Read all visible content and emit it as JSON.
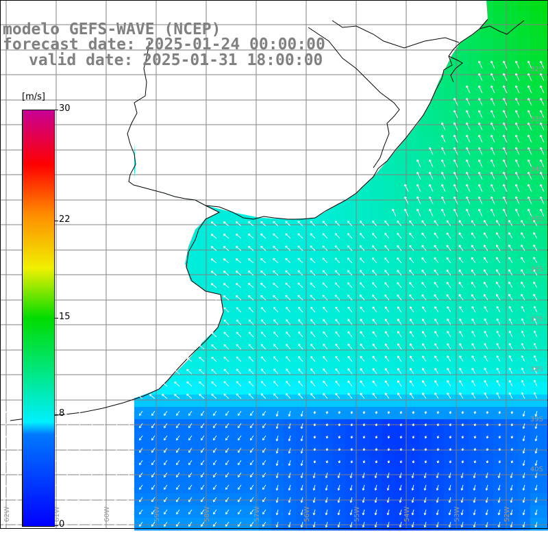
{
  "title": {
    "line1": "modelo GEFS-WAVE (NCEP)",
    "line2": "forecast date: 2025-01-24 00:00:00",
    "line3": "valid date: 2025-01-31 18:00:00"
  },
  "colorbar": {
    "unit": "[m/s]",
    "ticks": [
      "30",
      "22",
      "15",
      "8",
      "0"
    ],
    "tick_values": [
      30,
      22,
      15,
      8,
      0
    ],
    "range": [
      0,
      30
    ],
    "colors": [
      "#0000ff",
      "#0078ff",
      "#00f0ff",
      "#00e678",
      "#00dc00",
      "#f0f000",
      "#ff8c00",
      "#ff0000",
      "#c80096"
    ]
  },
  "map": {
    "right_axis_labels": [
      "32S",
      "33S",
      "34S",
      "35S",
      "36S",
      "37S",
      "38S",
      "39S",
      "40S"
    ],
    "bottom_axis_labels": [
      "62W",
      "61W",
      "60W",
      "59W",
      "58W",
      "57W",
      "56W",
      "55W",
      "54W",
      "53W",
      "52W"
    ],
    "land_color": "#ffffff",
    "grid_color": "#808080",
    "coast_color": "#000000",
    "vector_color": "#ffffff"
  }
}
